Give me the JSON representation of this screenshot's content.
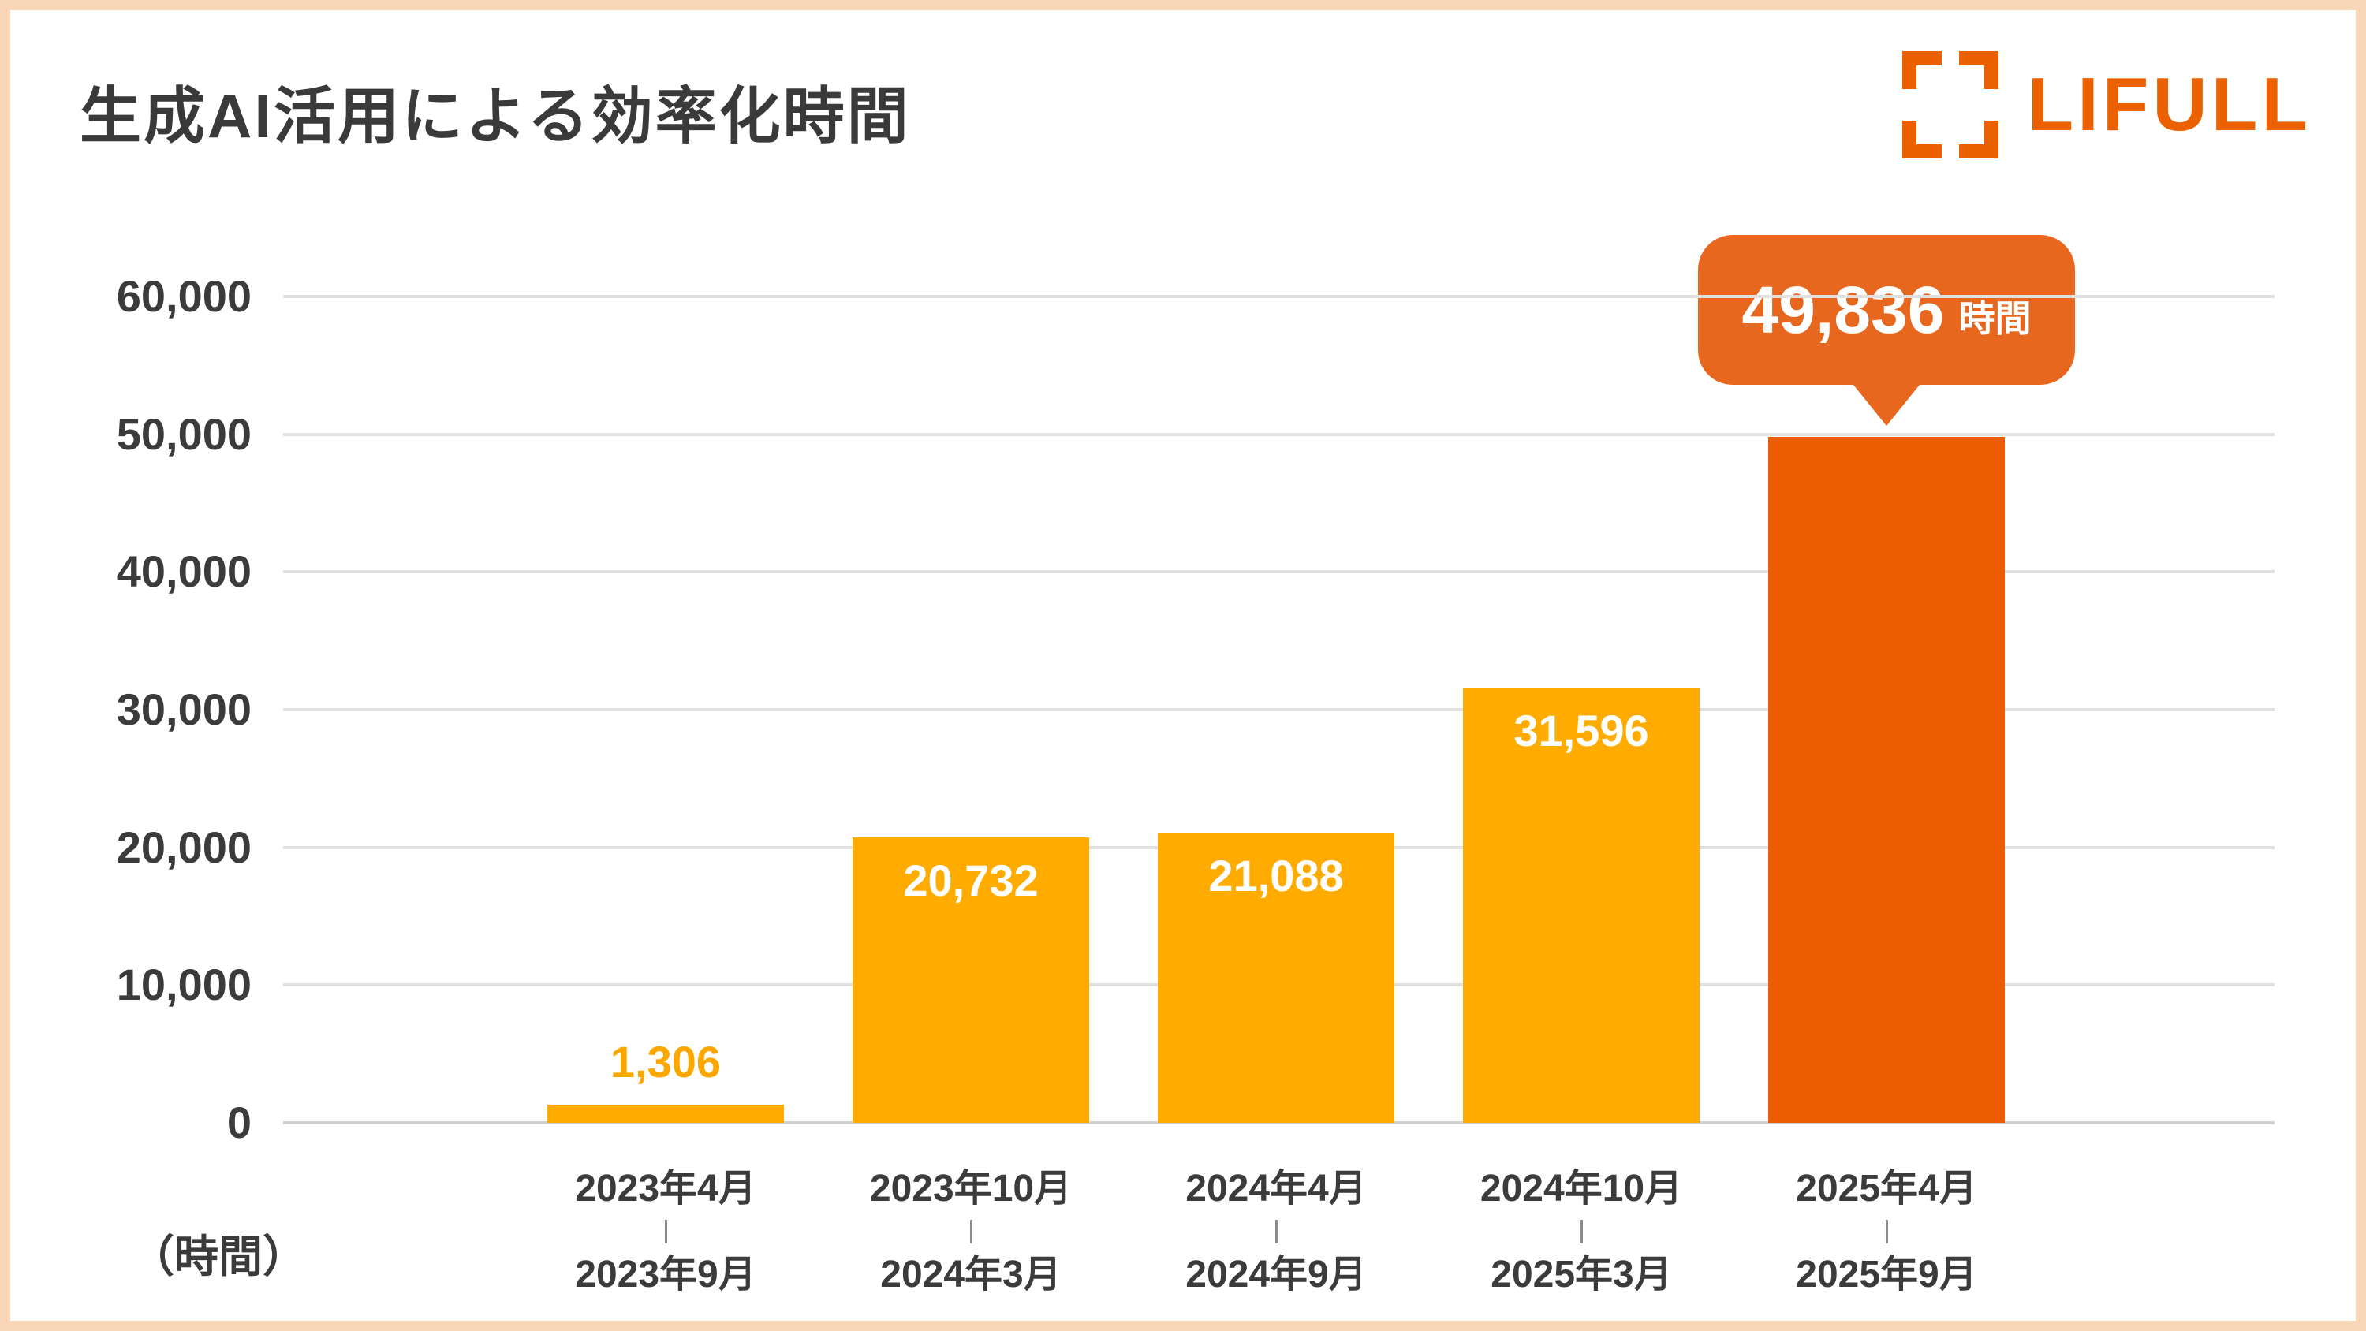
{
  "header": {
    "title": "生成AI活用による効率化時間",
    "logo_text": "LIFULL"
  },
  "colors": {
    "amber_bar": "#FFAB00",
    "dark_orange_bar": "#EC5D01",
    "callout_bg": "#E8671F",
    "logo_orange": "#EB6100",
    "frame_peach": "#F8D5B6",
    "gridline": "#E0E0E0",
    "text_dark": "#3B3B3B",
    "value_label_amber": "#FCA600"
  },
  "axis_unit_label": "（時間）",
  "callout": {
    "value": "49,836",
    "unit": "時間"
  },
  "chart_data": {
    "type": "bar",
    "title": "生成AI活用による効率化時間",
    "ylabel": "（時間）",
    "ylim": [
      0,
      60000
    ],
    "ytick_interval": 10000,
    "yticks": [
      "60,000",
      "50,000",
      "40,000",
      "30,000",
      "20,000",
      "10,000",
      "0"
    ],
    "grid": "horizontal",
    "legend": "none",
    "categories": [
      {
        "line1": "2023年4月",
        "line2": "2023年9月"
      },
      {
        "line1": "2023年10月",
        "line2": "2024年3月"
      },
      {
        "line1": "2024年4月",
        "line2": "2024年9月"
      },
      {
        "line1": "2024年10月",
        "line2": "2025年3月"
      },
      {
        "line1": "2025年4月",
        "line2": "2025年9月"
      }
    ],
    "values": [
      1306,
      20732,
      21088,
      31596,
      49836
    ],
    "value_labels": [
      "1,306",
      "20,732",
      "21,088",
      "31,596",
      "49,836"
    ],
    "value_label_styles": [
      "above",
      "inside",
      "inside",
      "inside",
      "callout"
    ],
    "bar_colors": [
      "#FFAB00",
      "#FFAB00",
      "#FFAB00",
      "#FFAB00",
      "#EC5D01"
    ]
  }
}
